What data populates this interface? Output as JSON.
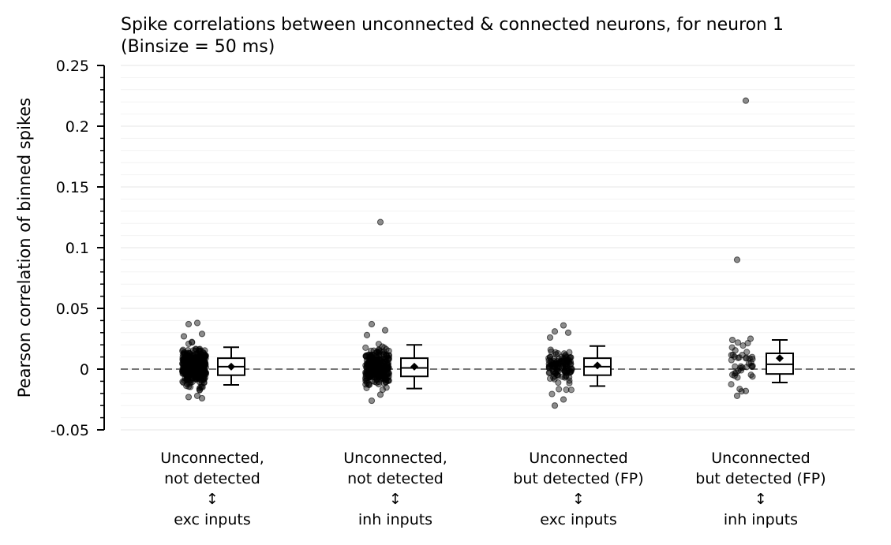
{
  "chart_data": {
    "type": "box-strip",
    "title_line1": "Spike correlations between unconnected & connected neurons, for neuron 1",
    "title_line2": "(Binsize = 50 ms)",
    "ylabel": "Pearson correlation of binned spikes",
    "ylim": [
      -0.05,
      0.25
    ],
    "yticks": [
      -0.05,
      0,
      0.05,
      0.1,
      0.15,
      0.2,
      0.25
    ],
    "ytick_labels": [
      "-0.05",
      "0",
      "0.05",
      "0.1",
      "0.15",
      "0.2",
      "0.25"
    ],
    "minor_tick_step": 0.01,
    "reference_line": 0,
    "groups": [
      {
        "label_lines": [
          "Unconnected,",
          "not detected",
          "↕",
          "exc inputs"
        ],
        "n_points": 400,
        "box": {
          "whisker_low": -0.013,
          "q1": -0.005,
          "median": 0.002,
          "q3": 0.009,
          "whisker_high": 0.018,
          "mean": 0.002
        },
        "outliers": [
          0.038,
          0.037,
          0.029,
          0.027,
          -0.022,
          -0.023,
          -0.024
        ]
      },
      {
        "label_lines": [
          "Unconnected,",
          "not detected",
          "↕",
          "inh inputs"
        ],
        "n_points": 300,
        "box": {
          "whisker_low": -0.016,
          "q1": -0.006,
          "median": 0.001,
          "q3": 0.009,
          "whisker_high": 0.02,
          "mean": 0.002
        },
        "outliers": [
          0.121,
          0.037,
          0.032,
          0.028,
          -0.021,
          -0.026
        ]
      },
      {
        "label_lines": [
          "Unconnected",
          "but detected (FP)",
          "↕",
          "exc inputs"
        ],
        "n_points": 120,
        "box": {
          "whisker_low": -0.014,
          "q1": -0.005,
          "median": 0.002,
          "q3": 0.009,
          "whisker_high": 0.019,
          "mean": 0.003
        },
        "outliers": [
          0.036,
          0.031,
          0.03,
          0.026,
          -0.025,
          -0.03
        ]
      },
      {
        "label_lines": [
          "Unconnected",
          "but detected (FP)",
          "↕",
          "inh inputs"
        ],
        "n_points": 40,
        "box": {
          "whisker_low": -0.011,
          "q1": -0.004,
          "median": 0.004,
          "q3": 0.013,
          "whisker_high": 0.024,
          "mean": 0.009
        },
        "outliers": [
          0.221,
          0.09,
          0.025,
          0.024,
          -0.018,
          -0.022
        ]
      }
    ]
  }
}
